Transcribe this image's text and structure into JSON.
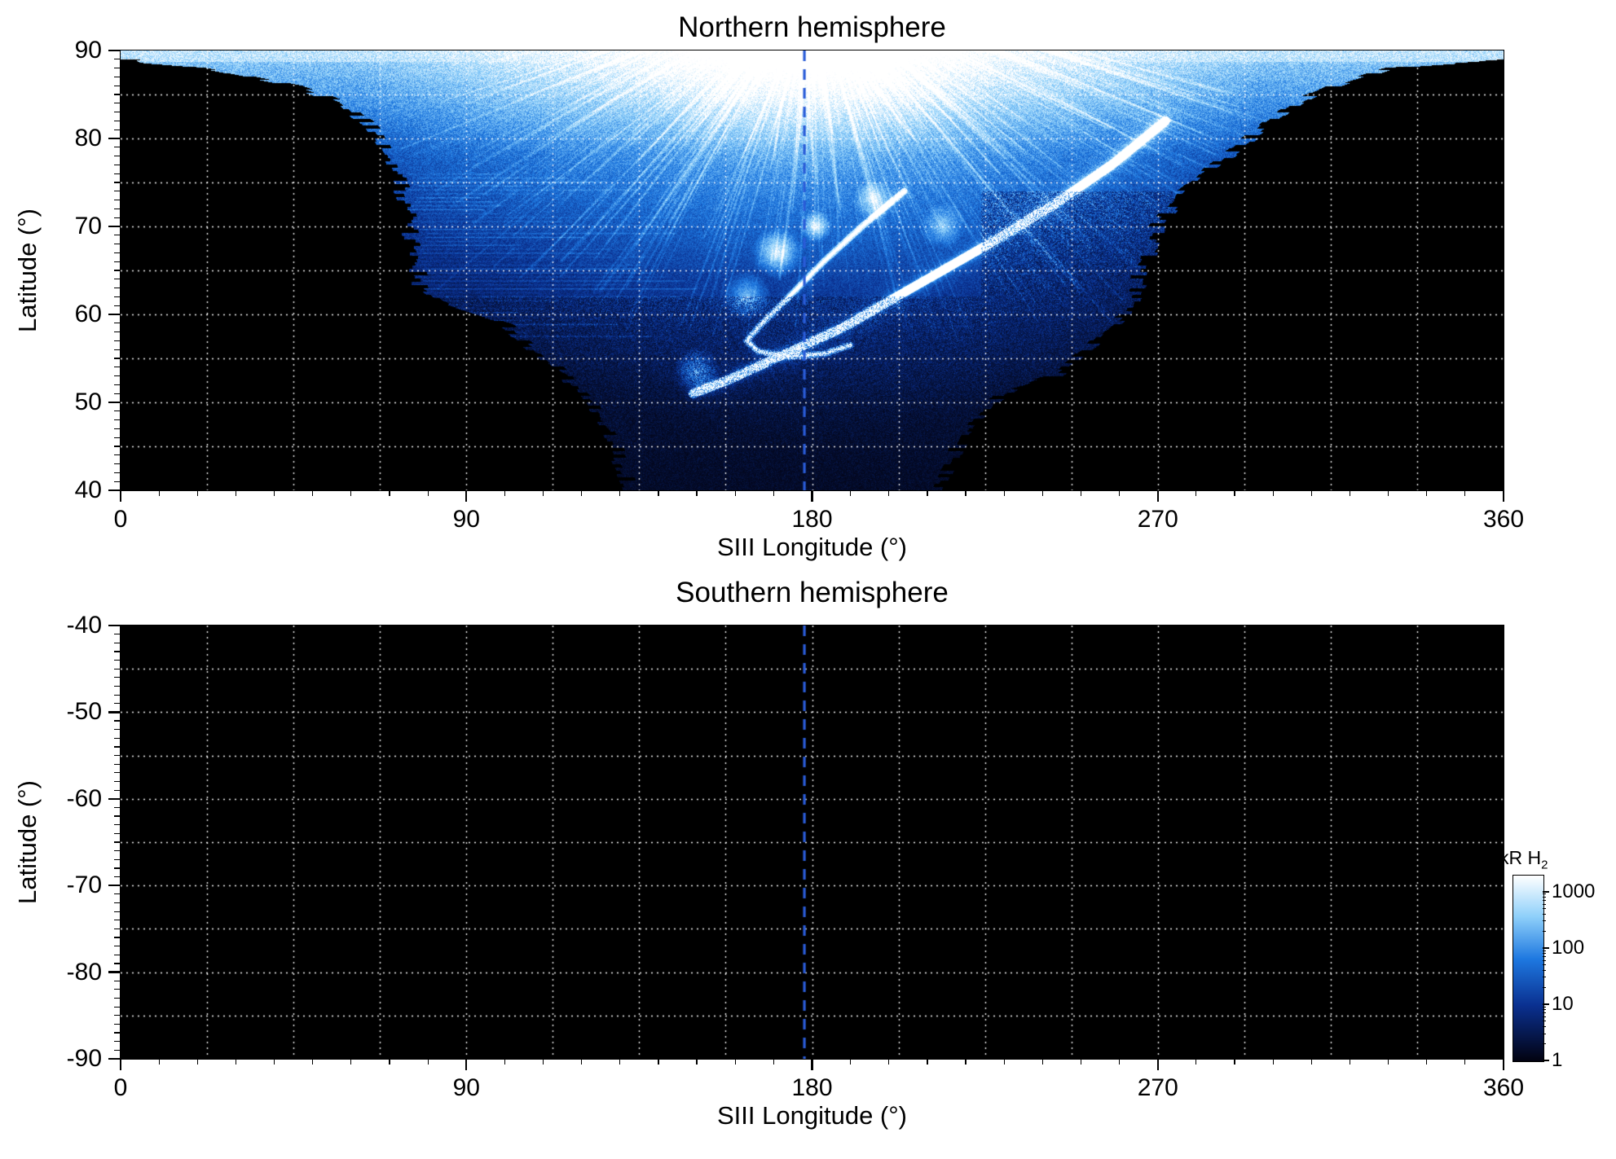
{
  "figure": {
    "background": "#ffffff",
    "meridian_color": "#2a5cd8",
    "grid_color": "#ffffff",
    "frame_color": "#000000"
  },
  "chart_data": [
    {
      "type": "heatmap",
      "title": "Northern hemisphere",
      "xlabel": "SIII Longitude (°)",
      "ylabel": "Latitude (°)",
      "xlim": [
        0,
        360
      ],
      "ylim": [
        40,
        90
      ],
      "xticks": [
        0,
        90,
        180,
        270,
        360
      ],
      "yticks": [
        90,
        80,
        70,
        60,
        50,
        40
      ],
      "x_minor_step": 10,
      "y_minor_step": 1,
      "grid": {
        "x_step": 22.5,
        "y_step": 5,
        "style": "dotted"
      },
      "meridian_lon": 178,
      "units": "kR H2",
      "value_range_kR": [
        1,
        1000
      ],
      "full_coverage_above_lat": 89,
      "coverage_left_boundary_lat_lon": [
        [
          90,
          0
        ],
        [
          88.6,
          5
        ],
        [
          88,
          22
        ],
        [
          86,
          45
        ],
        [
          84,
          58
        ],
        [
          81,
          66
        ],
        [
          78,
          70
        ],
        [
          73,
          74
        ],
        [
          68,
          76
        ],
        [
          63,
          78
        ],
        [
          61,
          84
        ],
        [
          59,
          100
        ],
        [
          56,
          108
        ],
        [
          53,
          116
        ],
        [
          50,
          122
        ],
        [
          46,
          128
        ],
        [
          40,
          133
        ]
      ],
      "coverage_right_boundary_lat_lon": [
        [
          90,
          360
        ],
        [
          88.8,
          356
        ],
        [
          88,
          330
        ],
        [
          86,
          316
        ],
        [
          84,
          306
        ],
        [
          81,
          297
        ],
        [
          78,
          288
        ],
        [
          74,
          277
        ],
        [
          70,
          270
        ],
        [
          65,
          266
        ],
        [
          60,
          262
        ],
        [
          56,
          252
        ],
        [
          53,
          243
        ],
        [
          51.5,
          232
        ],
        [
          50,
          227
        ],
        [
          46,
          219
        ],
        [
          40,
          213
        ]
      ],
      "main_oval_arc_lon_lat": [
        [
          272,
          82
        ],
        [
          258,
          77
        ],
        [
          243,
          72.5
        ],
        [
          228,
          68.5
        ],
        [
          214,
          65
        ],
        [
          200,
          61.5
        ],
        [
          188,
          58.5
        ],
        [
          178,
          56.5
        ],
        [
          168,
          54.5
        ],
        [
          158,
          52.5
        ],
        [
          149,
          51
        ]
      ],
      "secondary_arc_lon_lat": [
        [
          204,
          74
        ],
        [
          193,
          70
        ],
        [
          183,
          66
        ],
        [
          174,
          62
        ],
        [
          167,
          59
        ],
        [
          163,
          57
        ],
        [
          166,
          55.8
        ],
        [
          174,
          55.2
        ],
        [
          183,
          55.5
        ],
        [
          190,
          56.5
        ]
      ],
      "bright_patches_lon_lat_amp": [
        [
          171,
          67,
          0.5
        ],
        [
          181,
          70,
          0.45
        ],
        [
          163,
          62,
          0.4
        ],
        [
          196,
          73,
          0.35
        ],
        [
          214,
          70,
          0.3
        ],
        [
          150,
          53.5,
          0.45
        ]
      ]
    },
    {
      "type": "heatmap",
      "title": "Southern hemisphere",
      "xlabel": "SIII Longitude (°)",
      "ylabel": "Latitude (°)",
      "xlim": [
        0,
        360
      ],
      "ylim": [
        -90,
        -40
      ],
      "xticks": [
        0,
        90,
        180,
        270,
        360
      ],
      "yticks": [
        -40,
        -50,
        -60,
        -70,
        -80,
        -90
      ],
      "x_minor_step": 10,
      "y_minor_step": 1,
      "grid": {
        "x_step": 22.5,
        "y_step": 5,
        "style": "dotted"
      },
      "meridian_lon": 178,
      "units": "kR H2",
      "coverage": "none"
    }
  ],
  "colorbar": {
    "label": "kR H",
    "label_sub": "2",
    "scale": "log",
    "range": [
      1,
      2000
    ],
    "ticks": [
      1000,
      100,
      10,
      1
    ],
    "stops": [
      {
        "t": 0.0,
        "color": "#020210"
      },
      {
        "t": 0.3,
        "color": "#0a3090"
      },
      {
        "t": 0.55,
        "color": "#1e78e0"
      },
      {
        "t": 0.78,
        "color": "#8fd0fa"
      },
      {
        "t": 1.0,
        "color": "#ffffff"
      }
    ]
  }
}
